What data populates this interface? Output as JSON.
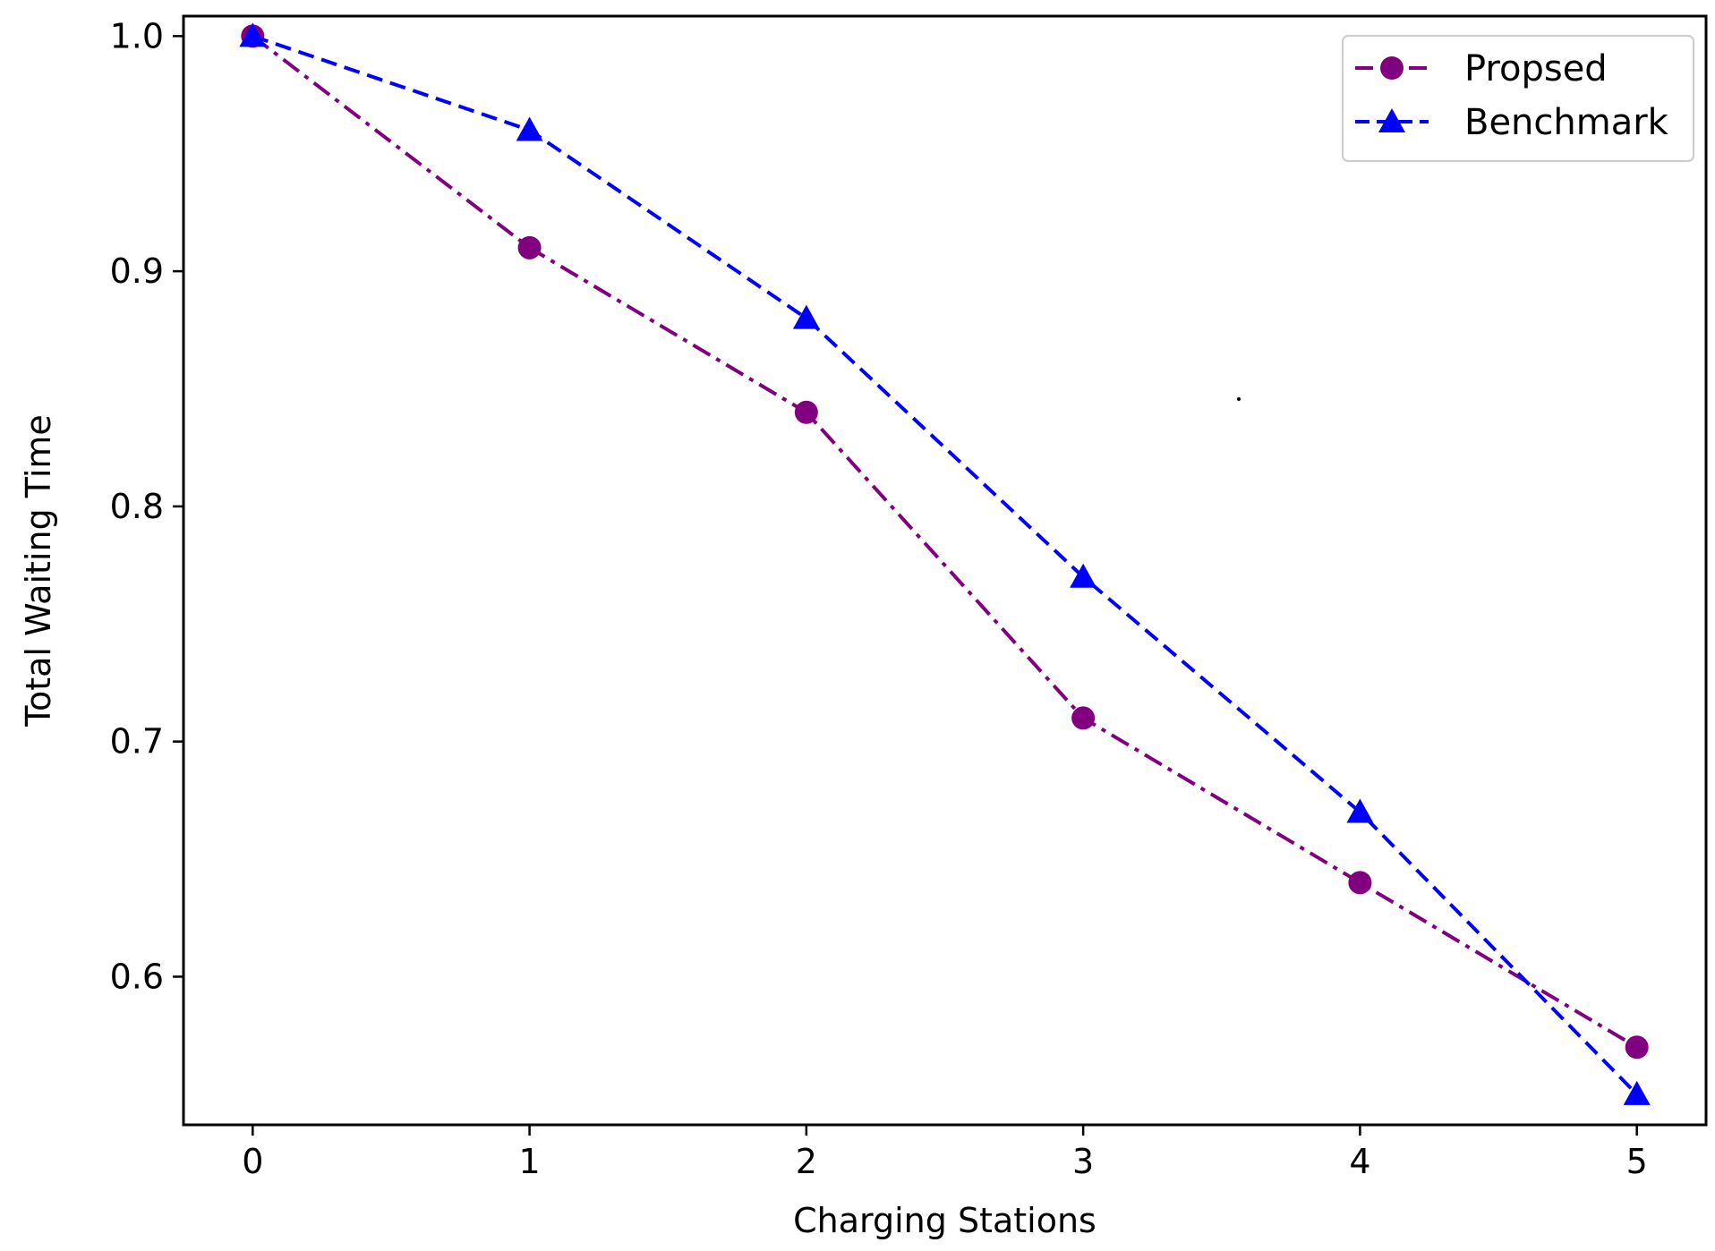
{
  "chart_data": {
    "type": "line",
    "title": "",
    "xlabel": "Charging Stations",
    "ylabel": "Total Waiting Time",
    "x": [
      0,
      1,
      2,
      3,
      4,
      5
    ],
    "xlim": [
      -0.25,
      5.25
    ],
    "ylim": [
      0.537,
      1.0085
    ],
    "xticks": [
      0,
      1,
      2,
      3,
      4,
      5
    ],
    "xtick_labels": [
      "0",
      "1",
      "2",
      "3",
      "4",
      "5"
    ],
    "yticks": [
      0.6,
      0.7,
      0.8,
      0.9,
      1.0
    ],
    "ytick_labels": [
      "0.6",
      "0.7",
      "0.8",
      "0.9",
      "1.0"
    ],
    "grid": false,
    "legend_position": "top-right",
    "series": [
      {
        "name": "Propsed",
        "values": [
          1.0,
          0.91,
          0.84,
          0.71,
          0.64,
          0.57
        ],
        "color": "#800080",
        "line_style": "dash-dot",
        "marker": "circle"
      },
      {
        "name": "Benchmark",
        "values": [
          1.0,
          0.96,
          0.88,
          0.77,
          0.67,
          0.55
        ],
        "color": "#0000ff",
        "line_style": "dashed",
        "marker": "triangle"
      }
    ]
  }
}
